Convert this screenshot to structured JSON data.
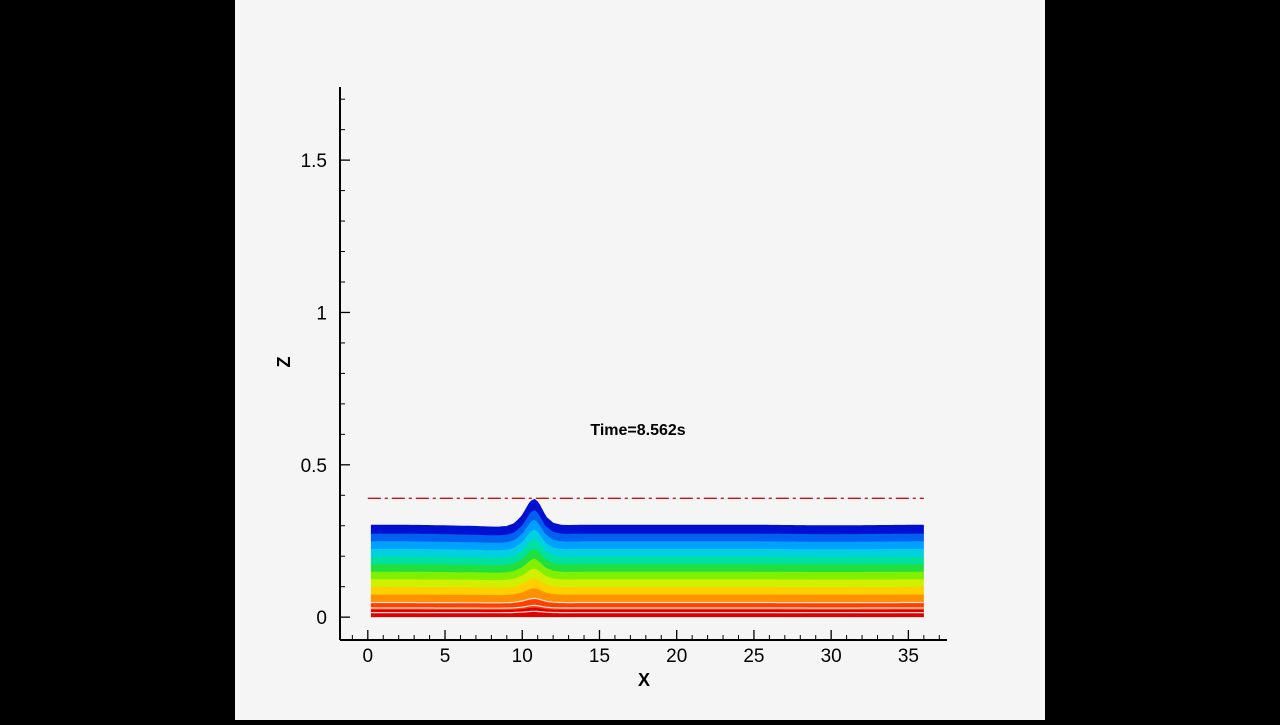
{
  "colors": {
    "page_background": "#000000",
    "plot_background": "#f5f5f5",
    "axis": "#000000",
    "reference_line": "#cc1111",
    "colormap": [
      "#e00000",
      "#ff4000",
      "#ff9000",
      "#ffd000",
      "#d0f000",
      "#80f000",
      "#20e040",
      "#00e0a0",
      "#00d0e0",
      "#00a0ff",
      "#0060f0",
      "#0010d0"
    ]
  },
  "chart_data": {
    "type": "area",
    "title": "",
    "annotation": "Time=8.562s",
    "xlabel": "X",
    "ylabel": "Z",
    "xlim": [
      -1.8,
      37.5
    ],
    "ylim": [
      -0.075,
      1.74
    ],
    "x_ticks": [
      0,
      5,
      10,
      15,
      20,
      25,
      30,
      35
    ],
    "x_tick_labels": [
      "0",
      "5",
      "10",
      "15",
      "20",
      "25",
      "30",
      "35"
    ],
    "x_minor_step": 1,
    "y_ticks": [
      0,
      0.5,
      1,
      1.5
    ],
    "y_tick_labels": [
      "0",
      "0.5",
      "1",
      "1.5"
    ],
    "y_minor_step": 0.1,
    "grid": false,
    "legend": "none",
    "fluid_domain": {
      "x_start": 0.2,
      "x_end": 36.0,
      "bottom": 0.0
    },
    "reference_line": {
      "z": 0.39,
      "x_start": 0.0,
      "x_end": 36.0,
      "style": "dash-dot"
    },
    "surface_profile": {
      "still_water_depth": 0.3,
      "x": [
        0.2,
        2,
        4,
        6,
        7,
        7.5,
        8,
        8.5,
        9,
        9.5,
        10,
        10.25,
        10.5,
        10.75,
        11,
        11.25,
        11.5,
        12,
        12.5,
        13,
        14,
        15,
        17,
        20,
        25,
        30,
        33,
        36
      ],
      "z": [
        0.3,
        0.3,
        0.299,
        0.297,
        0.296,
        0.295,
        0.294,
        0.294,
        0.296,
        0.305,
        0.33,
        0.352,
        0.374,
        0.386,
        0.376,
        0.352,
        0.328,
        0.306,
        0.3,
        0.299,
        0.3,
        0.3,
        0.3,
        0.3,
        0.3,
        0.298,
        0.299,
        0.3
      ]
    }
  }
}
